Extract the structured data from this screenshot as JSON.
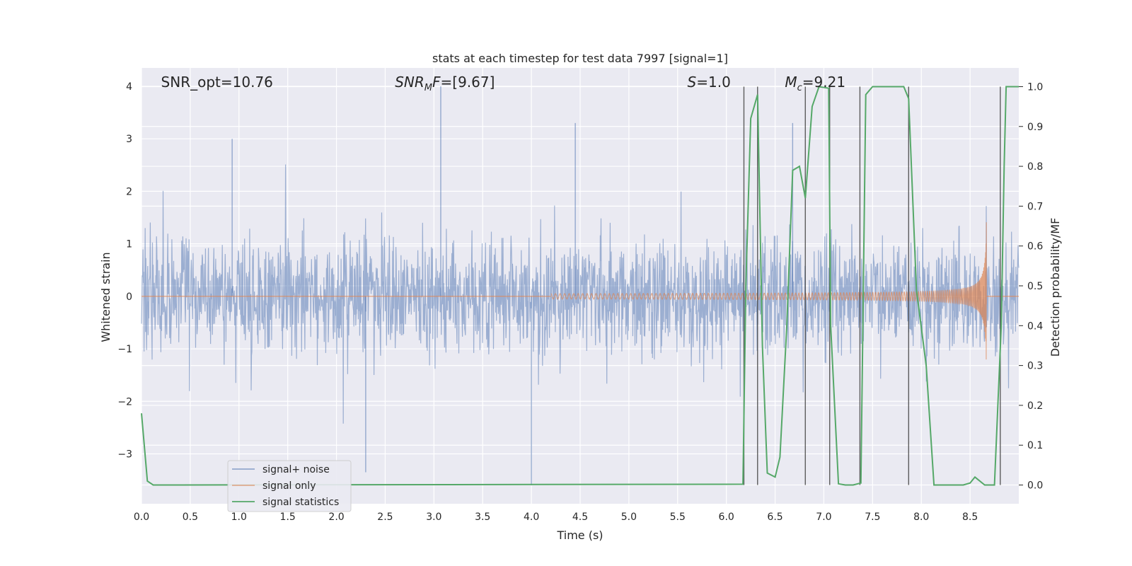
{
  "chart_data": {
    "type": "line",
    "title": "stats at each timestep for test data 7997 [signal=1]",
    "xlabel": "Time (s)",
    "ylabel": "Whitened strain",
    "y2label": "Detection probability/MF",
    "xlim": [
      0.0,
      9.0
    ],
    "ylim": [
      -3.95,
      4.35
    ],
    "y2lim": [
      -0.047,
      1.047
    ],
    "xticks": [
      "0.0",
      "0.5",
      "1.0",
      "1.5",
      "2.0",
      "2.5",
      "3.0",
      "3.5",
      "4.0",
      "4.5",
      "5.0",
      "5.5",
      "6.0",
      "6.5",
      "7.0",
      "7.5",
      "8.0",
      "8.5"
    ],
    "yticks": [
      "4",
      "3",
      "2",
      "1",
      "0",
      "−1",
      "−2",
      "−3"
    ],
    "y2ticks": [
      "1.0",
      "0.9",
      "0.8",
      "0.7",
      "0.6",
      "0.5",
      "0.4",
      "0.3",
      "0.2",
      "0.1",
      "0.0"
    ],
    "grid": true,
    "annotations": [
      {
        "id": "snr-opt",
        "text": "SNR_opt=10.76",
        "x": 0.2
      },
      {
        "id": "snr-mf",
        "text": "=[9.67]",
        "math": "SNR",
        "math_sub": "M",
        "math_tail": "F",
        "x": 2.6
      },
      {
        "id": "s-value",
        "text": "=1.0",
        "math": "S",
        "x": 5.6
      },
      {
        "id": "mchirp",
        "text": "=9.21",
        "math": "M",
        "math_sub": "c",
        "x": 6.6
      }
    ],
    "series": [
      {
        "name": "signal+ noise",
        "color": "#4c72b0",
        "kind": "noise",
        "amplitude_envelope": 1.3,
        "peak_spikes": [
          {
            "x": 3.07,
            "y": 4.0
          },
          {
            "x": 4.45,
            "y": 3.3
          },
          {
            "x": 6.68,
            "y": 3.3
          },
          {
            "x": 0.93,
            "y": 3.0
          },
          {
            "x": 4.0,
            "y": -3.6
          },
          {
            "x": 2.3,
            "y": -3.35
          }
        ]
      },
      {
        "name": "signal only",
        "color": "#dd8452",
        "kind": "chirp",
        "start": 4.2,
        "merger": 8.67,
        "peak_amplitude": 1.45
      },
      {
        "name": "signal statistics",
        "color": "#55a868",
        "kind": "probability",
        "x": [
          0.0,
          0.06,
          0.12,
          0.3,
          6.17,
          6.2,
          6.25,
          6.32,
          6.37,
          6.42,
          6.5,
          6.55,
          6.62,
          6.68,
          6.75,
          6.81,
          6.88,
          6.95,
          7.05,
          7.07,
          7.15,
          7.22,
          7.3,
          7.38,
          7.43,
          7.5,
          7.6,
          7.7,
          7.82,
          7.87,
          7.95,
          8.05,
          8.13,
          8.3,
          8.43,
          8.5,
          8.55,
          8.65,
          8.75,
          8.82,
          8.85,
          8.87,
          9.0
        ],
        "y": [
          0.18,
          0.01,
          0.0,
          0.0,
          0.002,
          0.5,
          0.92,
          0.98,
          0.35,
          0.03,
          0.02,
          0.07,
          0.4,
          0.79,
          0.8,
          0.72,
          0.95,
          1.0,
          0.996,
          0.4,
          0.003,
          0.0,
          0.0,
          0.005,
          0.98,
          1.0,
          1.0,
          1.0,
          1.0,
          0.97,
          0.49,
          0.3,
          0.0,
          0.0,
          0.0,
          0.005,
          0.02,
          0.0,
          0.0,
          0.4,
          0.8,
          1.0,
          1.0
        ]
      }
    ],
    "vlines": [
      6.18,
      6.32,
      6.81,
      7.06,
      7.37,
      7.87,
      8.81
    ],
    "legend": {
      "position": "lower-left",
      "entries": [
        "signal+ noise",
        "signal only",
        "signal statistics"
      ]
    }
  }
}
